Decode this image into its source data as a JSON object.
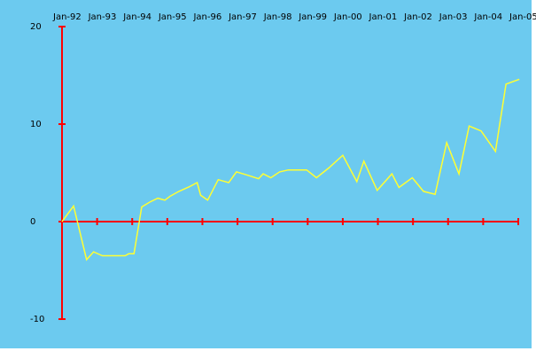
{
  "chart_data": {
    "type": "line",
    "x": [
      1992.0,
      1992.33,
      1992.7,
      1992.9,
      1993.15,
      1993.45,
      1993.8,
      1993.9,
      1994.05,
      1994.27,
      1994.5,
      1994.73,
      1994.93,
      1995.08,
      1995.33,
      1995.64,
      1995.85,
      1995.95,
      1996.15,
      1996.45,
      1996.75,
      1996.97,
      1997.25,
      1997.6,
      1997.73,
      1997.95,
      1998.2,
      1998.45,
      1998.97,
      1999.25,
      1999.6,
      2000.0,
      2000.4,
      2000.6,
      2000.98,
      2001.4,
      2001.6,
      2001.98,
      2002.3,
      2002.63,
      2002.96,
      2003.31,
      2003.6,
      2003.94,
      2004.35,
      2004.65,
      2005.03
    ],
    "values": [
      0,
      1.6,
      -3.9,
      -3.1,
      -3.5,
      -3.5,
      -3.5,
      -3.3,
      -3.3,
      1.5,
      2.0,
      2.4,
      2.2,
      2.6,
      3.1,
      3.6,
      4.0,
      2.7,
      2.2,
      4.3,
      4.0,
      5.1,
      4.8,
      4.4,
      4.9,
      4.5,
      5.1,
      5.3,
      5.3,
      4.5,
      5.5,
      6.8,
      4.1,
      6.2,
      3.2,
      4.9,
      3.5,
      4.5,
      3.1,
      2.8,
      8.1,
      4.9,
      9.8,
      9.3,
      7.2,
      14.1,
      14.6
    ],
    "color": "#ffff33",
    "background": "#6ccaef",
    "axis_color": "#ff0000",
    "xlim": [
      1992,
      2005
    ],
    "xticks": [
      {
        "value": 1992,
        "label": "Jan-92"
      },
      {
        "value": 1993,
        "label": "Jan-93"
      },
      {
        "value": 1994,
        "label": "Jan-94"
      },
      {
        "value": 1995,
        "label": "Jan-95"
      },
      {
        "value": 1996,
        "label": "Jan-96"
      },
      {
        "value": 1997,
        "label": "Jan-97"
      },
      {
        "value": 1998,
        "label": "Jan-98"
      },
      {
        "value": 1999,
        "label": "Jan-99"
      },
      {
        "value": 2000,
        "label": "Jan-00"
      },
      {
        "value": 2001,
        "label": "Jan-01"
      },
      {
        "value": 2002,
        "label": "Jan-02"
      },
      {
        "value": 2003,
        "label": "Jan-03"
      },
      {
        "value": 2004,
        "label": "Jan-04"
      },
      {
        "value": 2005,
        "label": "Jan-05"
      }
    ],
    "ylim": [
      -10,
      20
    ],
    "yticks": [
      20,
      10,
      0,
      -10
    ]
  }
}
